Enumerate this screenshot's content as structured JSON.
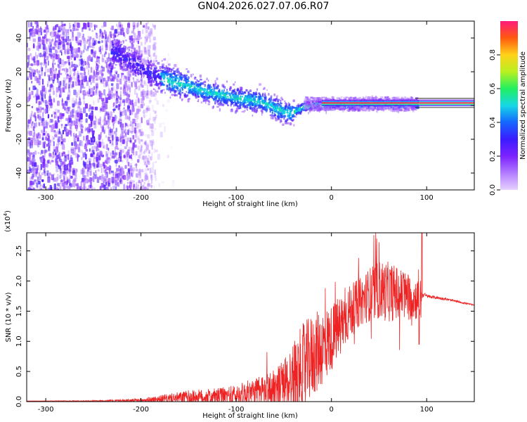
{
  "title": "GN04.2026.027.07.06.R07",
  "colors": {
    "snr_line": "#ee2222",
    "colormap": [
      "#e6d2ff",
      "#b27cff",
      "#7d22ff",
      "#3b1cff",
      "#1466ff",
      "#16d8e6",
      "#22f060",
      "#b8f020",
      "#ffd21a",
      "#ff5a0f",
      "#ff1a7a"
    ]
  },
  "chart_data": [
    {
      "type": "heatmap",
      "xlabel": "Height of straight line (km)",
      "ylabel": "Frequency (Hz)",
      "xlim": [
        -320,
        150
      ],
      "ylim": [
        -50,
        50
      ],
      "xticks": [
        -300,
        -200,
        -100,
        0,
        100
      ],
      "xtick_labels": [
        "-300",
        "-200",
        "-100",
        "0",
        "100"
      ],
      "yticks": [
        -40,
        -20,
        0,
        20,
        40
      ],
      "ytick_labels": [
        "-40",
        "-20",
        "0",
        "20",
        "40"
      ],
      "colorbar": {
        "label": "Normalized spectral amplitude",
        "range": [
          0,
          1
        ],
        "ticks": [
          0.0,
          0.2,
          0.4,
          0.6,
          0.8
        ],
        "tick_labels": [
          "0.0",
          "0.2",
          "0.4",
          "0.6",
          "0.8"
        ]
      },
      "ridge": {
        "description": "dominant frequency vs height",
        "points": [
          [
            -225,
            32
          ],
          [
            -200,
            22
          ],
          [
            -175,
            16
          ],
          [
            -150,
            12
          ],
          [
            -125,
            8
          ],
          [
            -100,
            5
          ],
          [
            -75,
            3
          ],
          [
            -55,
            -2
          ],
          [
            -45,
            -4
          ],
          [
            -30,
            0
          ],
          [
            -10,
            1
          ],
          [
            0,
            1.5
          ],
          [
            30,
            1.5
          ],
          [
            60,
            1.5
          ],
          [
            88,
            1.5
          ],
          [
            150,
            1.5
          ]
        ]
      },
      "noise_region": {
        "x": [
          -320,
          -185
        ],
        "y": [
          -50,
          50
        ]
      }
    },
    {
      "type": "line",
      "xlabel": "Height of straight line (km)",
      "ylabel": "SNR (10 * v/v)",
      "scale_label": "(x10^4)",
      "xlim": [
        -320,
        150
      ],
      "ylim": [
        0,
        2.8
      ],
      "xticks": [
        -300,
        -200,
        -100,
        0,
        100
      ],
      "xtick_labels": [
        "-300",
        "-200",
        "-100",
        "0",
        "100"
      ],
      "yticks": [
        0.0,
        0.5,
        1.0,
        1.5,
        2.0,
        2.5
      ],
      "ytick_labels": [
        "0.0",
        "0.5",
        "1.0",
        "1.5",
        "2.0",
        "2.5"
      ],
      "envelope": {
        "description": "approximate mean SNR and peak-to-peak noise amplitude vs height",
        "x": [
          -320,
          -250,
          -200,
          -170,
          -150,
          -120,
          -100,
          -80,
          -60,
          -50,
          -40,
          -30,
          -20,
          -10,
          0,
          10,
          20,
          30,
          40,
          50,
          60,
          70,
          80,
          90,
          94,
          96,
          100,
          120,
          150
        ],
        "mean": [
          0.01,
          0.01,
          0.02,
          0.05,
          0.07,
          0.08,
          0.1,
          0.15,
          0.2,
          0.28,
          0.4,
          0.6,
          0.75,
          0.9,
          1.05,
          1.3,
          1.5,
          1.65,
          1.78,
          1.85,
          1.82,
          1.8,
          1.75,
          1.7,
          1.72,
          1.78,
          1.75,
          1.7,
          1.6
        ],
        "noise": [
          0.0,
          0.01,
          0.03,
          0.08,
          0.12,
          0.14,
          0.18,
          0.25,
          0.35,
          0.45,
          0.6,
          0.7,
          0.7,
          0.65,
          0.55,
          0.5,
          0.45,
          0.4,
          0.45,
          0.5,
          0.5,
          0.45,
          0.4,
          0.35,
          0.4,
          0.05,
          0.03,
          0.02,
          0.01
        ]
      },
      "annotations": [
        {
          "x": 95,
          "y": 2.8,
          "note": "spike to top of axis"
        },
        {
          "x": 92,
          "y": 0.95,
          "note": "dip"
        }
      ]
    }
  ]
}
